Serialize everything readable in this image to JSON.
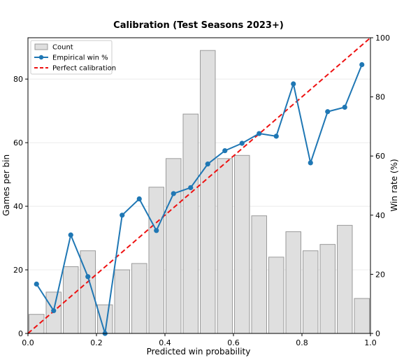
{
  "chart_data": {
    "type": "bar+line",
    "title": "Calibration (Test Seasons 2023+)",
    "xlabel": "Predicted win probability",
    "ylabel_left": "Games per bin",
    "ylabel_right": "Win rate (%)",
    "xlim": [
      0.0,
      1.0
    ],
    "ylim_left": [
      0,
      93
    ],
    "ylim_right": [
      0,
      100
    ],
    "x_ticks": [
      "0.0",
      "0.2",
      "0.4",
      "0.6",
      "0.8",
      "1.0"
    ],
    "y_left_ticks": [
      "0",
      "20",
      "40",
      "60",
      "80"
    ],
    "y_right_ticks": [
      "0",
      "20",
      "40",
      "60",
      "80",
      "100"
    ],
    "grid": "horizontal",
    "legend_position": "top-left",
    "legend": [
      {
        "label": "Count",
        "kind": "bar"
      },
      {
        "label": "Empirical win %",
        "kind": "line"
      },
      {
        "label": "Perfect calibration",
        "kind": "dashed"
      }
    ],
    "bins": [
      0.025,
      0.075,
      0.125,
      0.175,
      0.225,
      0.275,
      0.325,
      0.375,
      0.425,
      0.475,
      0.525,
      0.575,
      0.625,
      0.675,
      0.725,
      0.775,
      0.825,
      0.875,
      0.925,
      0.975
    ],
    "bin_width": 0.05,
    "series": [
      {
        "name": "Count",
        "axis": "left",
        "values": [
          6,
          13,
          21,
          26,
          9,
          20,
          22,
          46,
          55,
          69,
          89,
          55,
          56,
          37,
          24,
          32,
          26,
          28,
          34,
          11
        ]
      },
      {
        "name": "Empirical win %",
        "axis": "right",
        "values": [
          16.7,
          7.7,
          33.3,
          19.2,
          0.0,
          40.0,
          45.5,
          34.8,
          47.3,
          49.3,
          57.3,
          61.8,
          64.3,
          67.6,
          66.7,
          84.4,
          57.7,
          75.0,
          76.5,
          90.9
        ]
      },
      {
        "name": "Perfect calibration",
        "axis": "right",
        "x": [
          0.0,
          1.0
        ],
        "values": [
          0,
          100
        ]
      }
    ],
    "colors": {
      "bar_fill": "#dfdfdf",
      "bar_edge": "#9a9a9a",
      "line": "#1f77b4",
      "perfect": "#ee1111",
      "grid": "#e6e6e6"
    }
  }
}
